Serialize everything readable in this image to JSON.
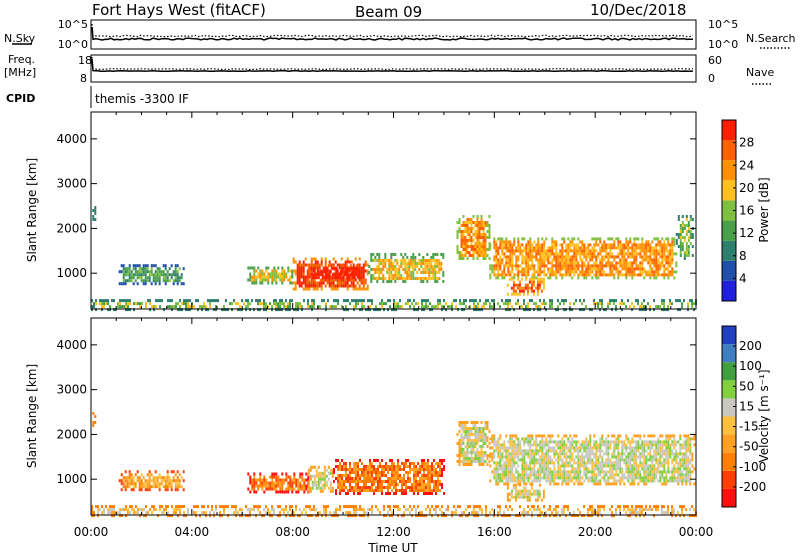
{
  "header": {
    "station": "Fort Hays West (fitACF)",
    "beam": "Beam 09",
    "date": "10/Dec/2018"
  },
  "params": {
    "nsky_label": "N.Sky",
    "nsky_ticks": [
      "10^5",
      "10^0"
    ],
    "nsearch_label": "N.Search",
    "nsearch_ticks": [
      "10^5",
      "10^0"
    ],
    "freq_label": "Freq.",
    "freq_unit": "[MHz]",
    "freq_ticks": [
      "18",
      "8"
    ],
    "nave_label": "Nave",
    "nave_ticks": [
      "60",
      "0"
    ],
    "cpid_label": "CPID",
    "cpid_text": "themis -3300 IF"
  },
  "chart_data": [
    {
      "type": "heatmap",
      "name": "power",
      "ylabel": "Slant Range [km]",
      "yticks": [
        "4000",
        "3000",
        "2000",
        "1000"
      ],
      "ylim": [
        200,
        4600
      ],
      "xlim": [
        0,
        24
      ],
      "xticks": [
        "00:00",
        "04:00",
        "08:00",
        "12:00",
        "16:00",
        "20:00",
        "00:00"
      ],
      "colorbar": {
        "label": "Power [dB]",
        "ticks": [
          "28",
          "24",
          "20",
          "16",
          "12",
          "8",
          "4"
        ],
        "colors": [
          "#1f1fe0",
          "#1f4fa8",
          "#2f7f6f",
          "#4a9f4a",
          "#7fbf3f",
          "#ffc020",
          "#ff9000",
          "#ff6000",
          "#ff2000"
        ]
      },
      "regions": [
        {
          "t0": 0.05,
          "t1": 0.2,
          "r0": 2200,
          "r1": 2500,
          "level": 4
        },
        {
          "t0": 1.1,
          "t1": 3.7,
          "r0": 750,
          "r1": 1200,
          "level": 3
        },
        {
          "t0": 6.2,
          "t1": 8.0,
          "r0": 750,
          "r1": 1150,
          "level": 5
        },
        {
          "t0": 8.0,
          "t1": 11.0,
          "r0": 650,
          "r1": 1350,
          "level": 8
        },
        {
          "t0": 8.6,
          "t1": 10.8,
          "r0": 800,
          "r1": 1200,
          "level": 9
        },
        {
          "t0": 11.0,
          "t1": 14.0,
          "r0": 800,
          "r1": 1450,
          "level": 5
        },
        {
          "t0": 14.5,
          "t1": 15.8,
          "r0": 1300,
          "r1": 2300,
          "level": 6
        },
        {
          "t0": 15.8,
          "t1": 23.2,
          "r0": 900,
          "r1": 1800,
          "level": 6
        },
        {
          "t0": 23.2,
          "t1": 23.9,
          "r0": 1300,
          "r1": 2300,
          "level": 4
        },
        {
          "t0": 16.5,
          "t1": 18.0,
          "r0": 500,
          "r1": 900,
          "level": 7
        },
        {
          "t0": 0.0,
          "t1": 24.0,
          "r0": 200,
          "r1": 420,
          "level": 4
        }
      ]
    },
    {
      "type": "heatmap",
      "name": "velocity",
      "ylabel": "Slant Range [km]",
      "yticks": [
        "4000",
        "3000",
        "2000",
        "1000"
      ],
      "ylim": [
        200,
        4600
      ],
      "xlim": [
        0,
        24
      ],
      "xticks": [
        "00:00",
        "04:00",
        "08:00",
        "12:00",
        "16:00",
        "20:00",
        "00:00"
      ],
      "xlabel": "Time UT",
      "colorbar": {
        "label": "Velocity [m s⁻¹]",
        "ticks": [
          "200",
          "100",
          "50",
          "15",
          "-15",
          "-50",
          "-100",
          "-200"
        ],
        "colors": [
          "#ff1010",
          "#ff4000",
          "#ff8000",
          "#ffa020",
          "#ffc040",
          "#c8c8c0",
          "#80d040",
          "#40a040",
          "#3f7fbf",
          "#2040c0"
        ]
      },
      "regions": [
        {
          "t0": 0.05,
          "t1": 0.2,
          "r0": 2200,
          "r1": 2500,
          "level": 4
        },
        {
          "t0": 1.1,
          "t1": 3.7,
          "r0": 750,
          "r1": 1200,
          "level": 3
        },
        {
          "t0": 6.2,
          "t1": 8.6,
          "r0": 700,
          "r1": 1150,
          "level": 2
        },
        {
          "t0": 8.6,
          "t1": 9.6,
          "r0": 700,
          "r1": 1300,
          "level": 5
        },
        {
          "t0": 9.6,
          "t1": 14.0,
          "r0": 650,
          "r1": 1450,
          "level": 2
        },
        {
          "t0": 14.5,
          "t1": 15.8,
          "r0": 1300,
          "r1": 2300,
          "level": 5
        },
        {
          "t0": 15.8,
          "t1": 23.9,
          "r0": 900,
          "r1": 2000,
          "level": 5
        },
        {
          "t0": 16.5,
          "t1": 18.0,
          "r0": 500,
          "r1": 900,
          "level": 5
        },
        {
          "t0": 0.0,
          "t1": 24.0,
          "r0": 200,
          "r1": 420,
          "level": 4
        }
      ]
    }
  ]
}
